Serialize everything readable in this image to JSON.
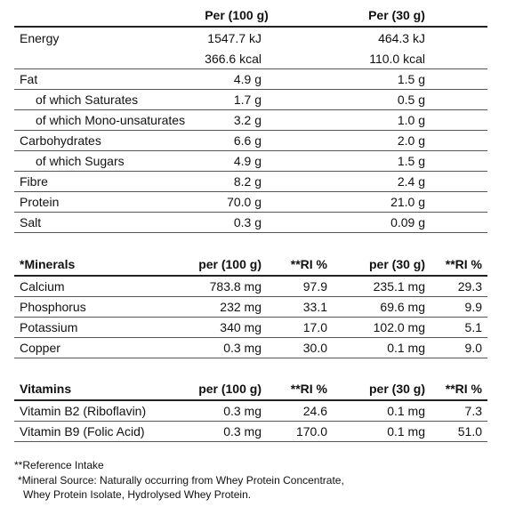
{
  "nutrition": {
    "col_headers": [
      "Per (100 g)",
      "Per  (30 g)"
    ],
    "rows": [
      {
        "label": "Energy",
        "v1": "1547.7 kJ",
        "v2": "464.3 kJ",
        "indent": false
      },
      {
        "label": "",
        "v1": "366.6 kcal",
        "v2": "110.0 kcal",
        "indent": false
      },
      {
        "label": "Fat",
        "v1": "4.9 g",
        "v2": "1.5 g",
        "indent": false
      },
      {
        "label": "of which Saturates",
        "v1": "1.7 g",
        "v2": "0.5 g",
        "indent": true
      },
      {
        "label": "of which Mono-unsaturates",
        "v1": "3.2 g",
        "v2": "1.0 g",
        "indent": true
      },
      {
        "label": "Carbohydrates",
        "v1": "6.6 g",
        "v2": "2.0 g",
        "indent": false
      },
      {
        "label": "of which Sugars",
        "v1": "4.9 g",
        "v2": "1.5 g",
        "indent": true
      },
      {
        "label": "Fibre",
        "v1": "8.2 g",
        "v2": "2.4 g",
        "indent": false
      },
      {
        "label": "Protein",
        "v1": "70.0 g",
        "v2": "21.0 g",
        "indent": false
      },
      {
        "label": "Salt",
        "v1": "0.3 g",
        "v2": "0.09 g",
        "indent": false
      }
    ]
  },
  "minerals": {
    "headers": [
      "*Minerals",
      "per (100 g)",
      "**RI %",
      "per (30 g)",
      "**RI %"
    ],
    "rows": [
      {
        "label": "Calcium",
        "v1": "783.8 mg",
        "ri1": "97.9",
        "v2": "235.1 mg",
        "ri2": "29.3"
      },
      {
        "label": "Phosphorus",
        "v1": "232 mg",
        "ri1": "33.1",
        "v2": "69.6 mg",
        "ri2": "9.9"
      },
      {
        "label": "Potassium",
        "v1": "340 mg",
        "ri1": "17.0",
        "v2": "102.0 mg",
        "ri2": "5.1"
      },
      {
        "label": "Copper",
        "v1": "0.3 mg",
        "ri1": "30.0",
        "v2": "0.1 mg",
        "ri2": "9.0"
      }
    ]
  },
  "vitamins": {
    "headers": [
      "Vitamins",
      "per (100 g)",
      "**RI %",
      "per (30 g)",
      "**RI %"
    ],
    "rows": [
      {
        "label": "Vitamin B2 (Riboflavin)",
        "v1": "0.3 mg",
        "ri1": "24.6",
        "v2": "0.1 mg",
        "ri2": "7.3"
      },
      {
        "label": "Vitamin B9 (Folic Acid)",
        "v1": "0.3 mg",
        "ri1": "170.0",
        "v2": "0.1 mg",
        "ri2": "51.0"
      }
    ]
  },
  "footnotes": [
    "**Reference Intake",
    "*Mineral Source: Naturally occurring from Whey Protein Concentrate,",
    "Whey Protein Isolate, Hydrolysed Whey Protein."
  ]
}
